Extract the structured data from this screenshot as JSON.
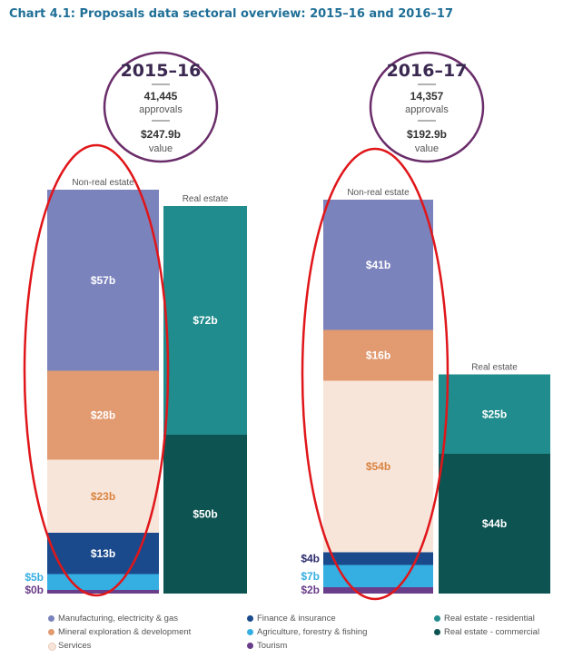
{
  "title": "Chart 4.1: Proposals data sectoral overview: 2015–16 and 2016–17",
  "colors": {
    "manufacturing": "#7b83bd",
    "mineral": "#e29a70",
    "services": "#f8e5da",
    "finance": "#1a4a8c",
    "agriculture": "#35aee2",
    "tourism": "#6a3d8a",
    "re_residential": "#218c8d",
    "re_commercial": "#0c5352",
    "annotation": "#e0161a",
    "circle": "#6a2d6a",
    "label_dark": "#2b2b6e",
    "label_services": "#d9833f"
  },
  "circles": [
    {
      "year": "2015–16",
      "approvals_num": "41,445",
      "approvals_label": "approvals",
      "value_num": "$247.9b",
      "value_label": "value"
    },
    {
      "year": "2016–17",
      "approvals_num": "14,357",
      "approvals_label": "approvals",
      "value_num": "$192.9b",
      "value_label": "value"
    }
  ],
  "chart_data": {
    "type": "bar",
    "stacked": true,
    "title": "Chart 4.1: Proposals data sectoral overview: 2015–16 and 2016–17",
    "units": "$b",
    "groups": [
      {
        "year": "2015–16",
        "bars": [
          {
            "name": "Non-real estate",
            "segments": [
              {
                "series": "Tourism",
                "value": 0,
                "label": "$0b",
                "label_side": "left"
              },
              {
                "series": "Agriculture, forestry & fishing",
                "value": 5,
                "label": "$5b",
                "label_side": "left"
              },
              {
                "series": "Finance & insurance",
                "value": 13,
                "label": "$13b"
              },
              {
                "series": "Services",
                "value": 23,
                "label": "$23b"
              },
              {
                "series": "Mineral exploration & development",
                "value": 28,
                "label": "$28b"
              },
              {
                "series": "Manufacturing, electricity & gas",
                "value": 57,
                "label": "$57b"
              }
            ]
          },
          {
            "name": "Real estate",
            "segments": [
              {
                "series": "Real estate - commercial",
                "value": 50,
                "label": "$50b"
              },
              {
                "series": "Real estate - residential",
                "value": 72,
                "label": "$72b"
              }
            ]
          }
        ]
      },
      {
        "year": "2016–17",
        "bars": [
          {
            "name": "Non-real estate",
            "segments": [
              {
                "series": "Tourism",
                "value": 2,
                "label": "$2b",
                "label_side": "left"
              },
              {
                "series": "Agriculture, forestry & fishing",
                "value": 7,
                "label": "$7b",
                "label_side": "left"
              },
              {
                "series": "Finance & insurance",
                "value": 4,
                "label": "$4b",
                "label_side": "left"
              },
              {
                "series": "Services",
                "value": 54,
                "label": "$54b"
              },
              {
                "series": "Mineral exploration & development",
                "value": 16,
                "label": "$16b"
              },
              {
                "series": "Manufacturing, electricity & gas",
                "value": 41,
                "label": "$41b"
              }
            ]
          },
          {
            "name": "Real estate",
            "segments": [
              {
                "series": "Real estate - commercial",
                "value": 44,
                "label": "$44b"
              },
              {
                "series": "Real estate - residential",
                "value": 25,
                "label": "$25b"
              }
            ]
          }
        ]
      }
    ],
    "legend": [
      {
        "name": "Manufacturing, electricity & gas",
        "color_key": "manufacturing"
      },
      {
        "name": "Mineral exploration & development",
        "color_key": "mineral"
      },
      {
        "name": "Services",
        "color_key": "services"
      },
      {
        "name": "Finance & insurance",
        "color_key": "finance"
      },
      {
        "name": "Agriculture, forestry & fishing",
        "color_key": "agriculture"
      },
      {
        "name": "Tourism",
        "color_key": "tourism"
      },
      {
        "name": "Real estate - residential",
        "color_key": "re_residential"
      },
      {
        "name": "Real estate - commercial",
        "color_key": "re_commercial"
      }
    ],
    "legend_position": "bottom"
  }
}
